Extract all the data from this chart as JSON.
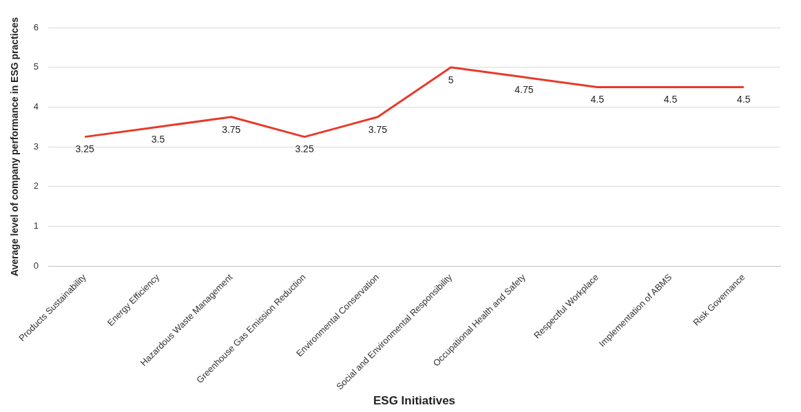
{
  "chart_data": {
    "type": "line",
    "xlabel": "ESG Initiatives",
    "ylabel": "Average level of company performance in ESG practices",
    "categories": [
      "Products Sustainability",
      "Energy Efficiency",
      "Hazardous Waste Management",
      "Greenhouse Gas Emission Reduction",
      "Environmental Conservation",
      "Social and Environmental Responsibility",
      "Occupational Health and Safety",
      "Respectful Workplace",
      "Implementation of ABMS",
      "Risk Governance"
    ],
    "values": [
      3.25,
      3.5,
      3.75,
      3.25,
      3.75,
      5,
      4.75,
      4.5,
      4.5,
      4.5
    ],
    "color": "#e8392a",
    "ylim": [
      0,
      6
    ],
    "yticks": [
      0,
      1,
      2,
      3,
      4,
      5,
      6
    ],
    "grid": "y",
    "legend": false,
    "marker": "none",
    "line_style": "solid",
    "data_labels": true
  }
}
